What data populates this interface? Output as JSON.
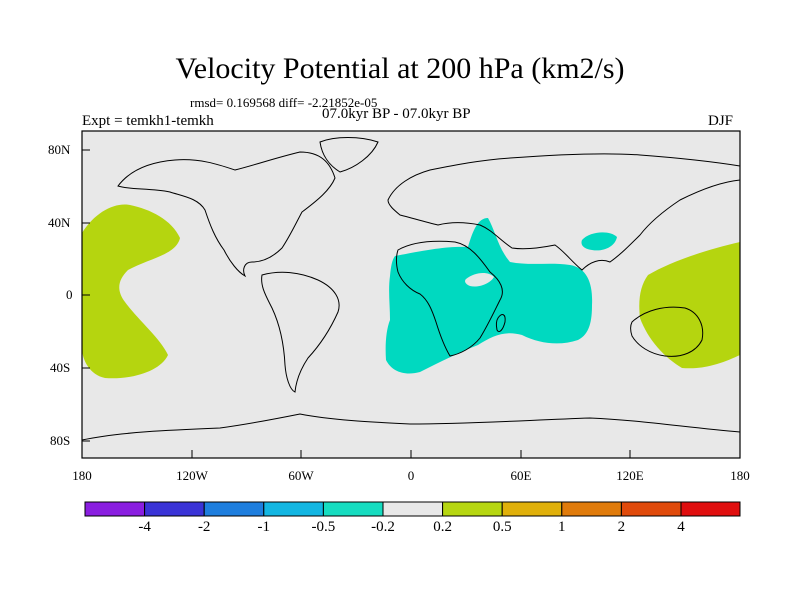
{
  "title": "Velocity Potential at 200 hPa (km2/s)",
  "stats_line": "rmsd= 0.169568 diff= -2.21852e-05",
  "experiment": "Expt = temkh1-temkh",
  "period": "07.0kyr BP - 07.0kyr BP",
  "season": "DJF",
  "lat_labels": [
    "80N",
    "40N",
    "0",
    "40S",
    "80S"
  ],
  "lon_labels": [
    "180",
    "120W",
    "60W",
    "0",
    "60E",
    "120E",
    "180"
  ],
  "colorbar": {
    "labels": [
      "-4",
      "-2",
      "-1",
      "-0.5",
      "-0.2",
      "0.2",
      "0.5",
      "1",
      "2",
      "4"
    ],
    "colors": [
      "#8a1ee0",
      "#3a33d6",
      "#1e7ede",
      "#13b6e2",
      "#16dcc0",
      "#e8e8e8",
      "#b6d611",
      "#e0b00a",
      "#e07b0b",
      "#e04a0b",
      "#e00e0e"
    ]
  },
  "field_colors": {
    "negative": "#00d9c0",
    "positive": "#b5d50f",
    "neutral": "#e8e8e8"
  }
}
